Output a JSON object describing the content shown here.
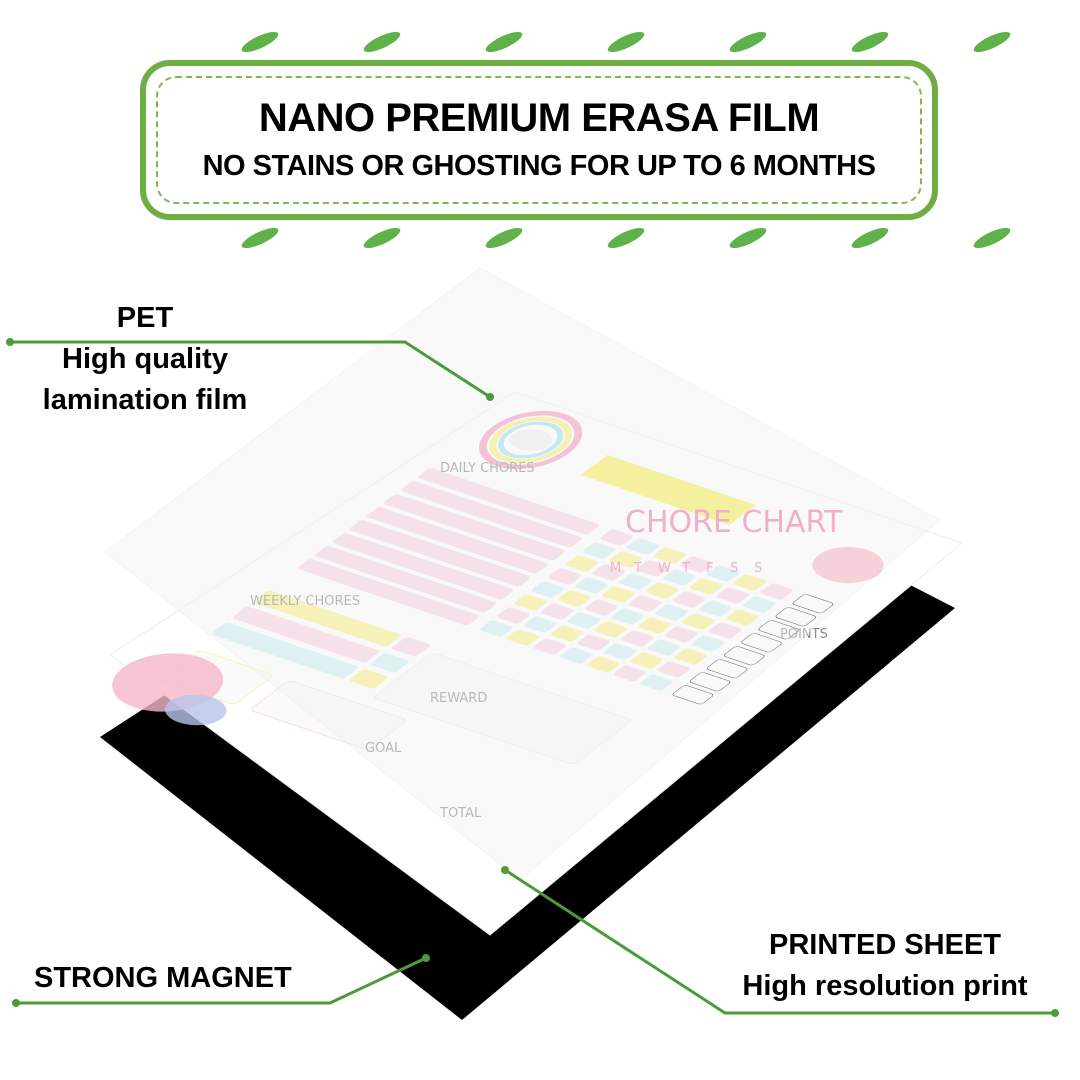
{
  "banner": {
    "title": "NANO PREMIUM ERASA FILM",
    "subtitle": "NO STAINS OR GHOSTING FOR UP TO 6 MONTHS"
  },
  "callouts": {
    "pet": {
      "title": "PET",
      "line1": "High quality",
      "line2": "lamination film"
    },
    "magnet": {
      "title": "STRONG MAGNET"
    },
    "sheet": {
      "title": "PRINTED SHEET",
      "line1": "High resolution print"
    }
  },
  "chart_sheet": {
    "title": "CHORE CHART",
    "daily_label": "DAILY CHORES",
    "weekly_label": "WEEKLY CHORES",
    "reward_label": "REWARD",
    "goal_label": "GOAL",
    "total_label": "TOTAL",
    "points_label": "POINTS",
    "days": [
      "M",
      "T",
      "W",
      "T",
      "F",
      "S",
      "S"
    ]
  },
  "colors": {
    "accent_green": "#4c9a3a",
    "banner_border": "#6fae44",
    "pink": "#f7d3e3",
    "yellow": "#f8f08a",
    "cyan": "#cdeef0",
    "magnet": "#000000",
    "title_pink": "#f07aa8"
  }
}
